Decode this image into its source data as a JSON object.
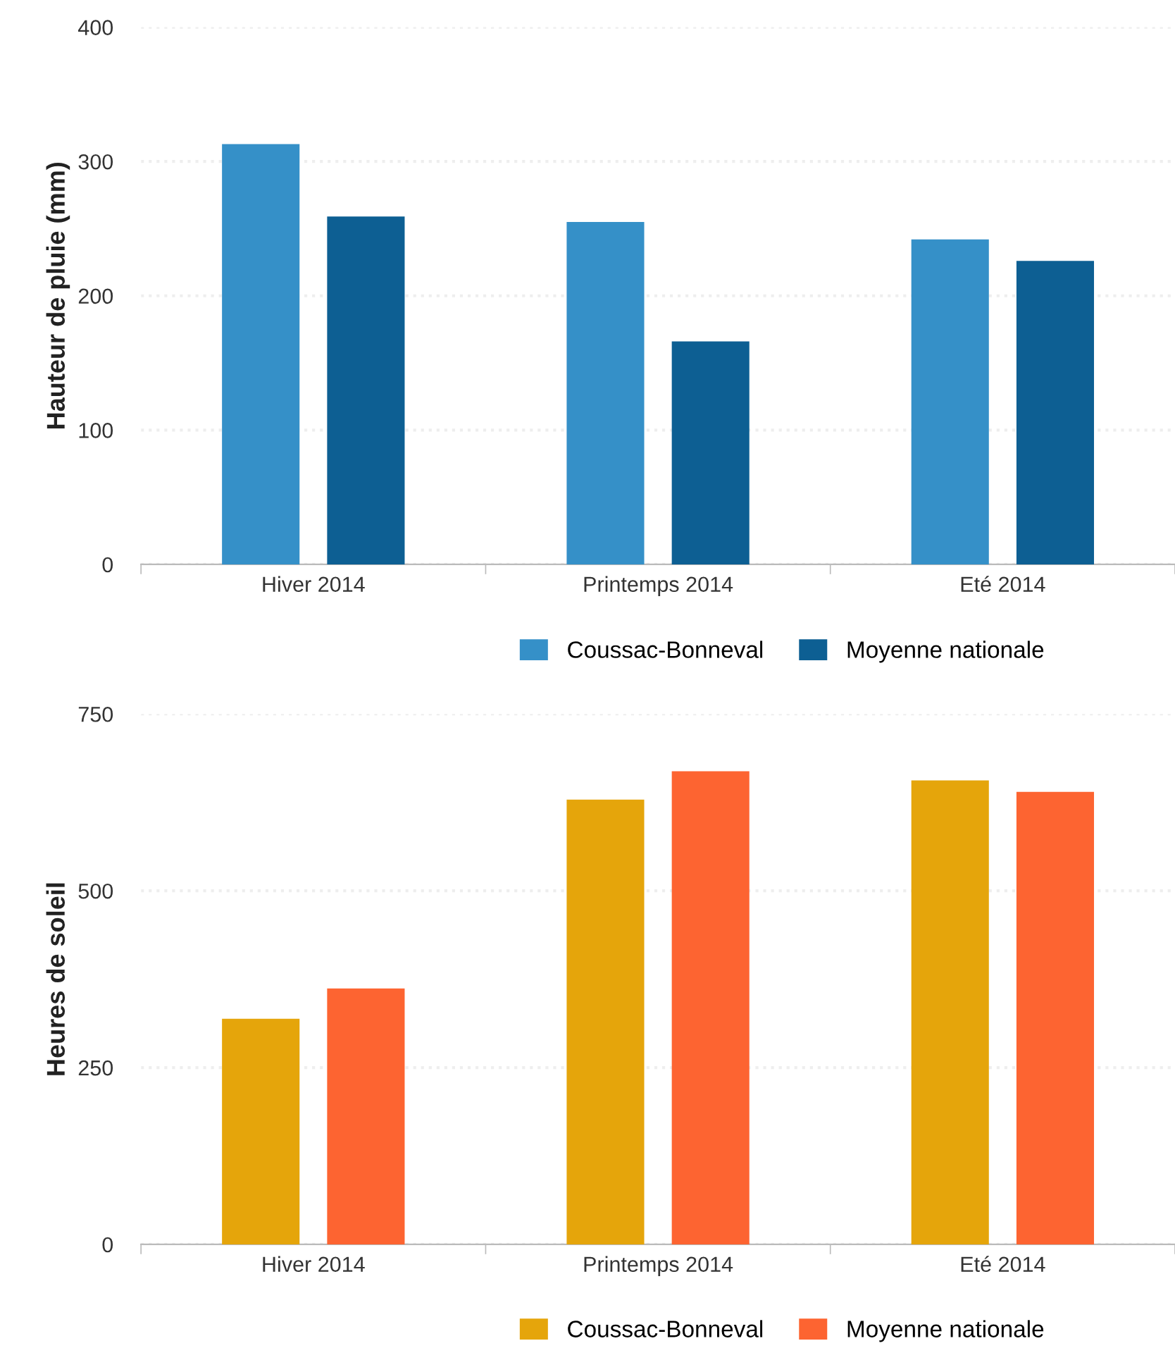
{
  "chart_data": [
    {
      "type": "bar",
      "ylabel": "Hauteur de pluie (mm)",
      "categories": [
        "Hiver 2014",
        "Printemps 2014",
        "Eté 2014"
      ],
      "series": [
        {
          "name": "Coussac-Bonneval",
          "color": "#3590c8",
          "values": [
            313,
            255,
            242
          ]
        },
        {
          "name": "Moyenne nationale",
          "color": "#0d5f93",
          "values": [
            259,
            166,
            226
          ]
        }
      ],
      "ylim": [
        0,
        400
      ],
      "yticks": [
        0,
        100,
        200,
        300,
        400
      ],
      "grid": "y",
      "legend": "bottom"
    },
    {
      "type": "bar",
      "ylabel": "Heures de soleil",
      "categories": [
        "Hiver 2014",
        "Printemps 2014",
        "Eté 2014"
      ],
      "series": [
        {
          "name": "Coussac-Bonneval",
          "color": "#e5a50b",
          "values": [
            319,
            629,
            656
          ]
        },
        {
          "name": "Moyenne nationale",
          "color": "#fd6431",
          "values": [
            362,
            669,
            640
          ]
        }
      ],
      "ylim": [
        0,
        750
      ],
      "yticks": [
        0,
        250,
        500,
        750
      ],
      "grid": "y",
      "legend": "bottom"
    }
  ]
}
